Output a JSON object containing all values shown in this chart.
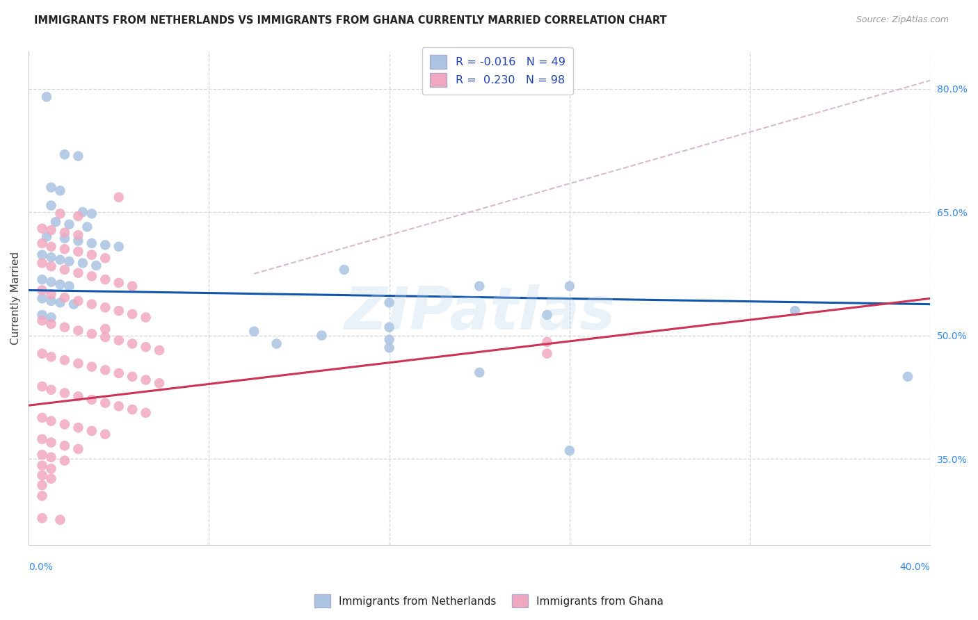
{
  "title": "IMMIGRANTS FROM NETHERLANDS VS IMMIGRANTS FROM GHANA CURRENTLY MARRIED CORRELATION CHART",
  "source": "Source: ZipAtlas.com",
  "ylabel": "Currently Married",
  "ylabel_right_labels": [
    "80.0%",
    "65.0%",
    "50.0%",
    "35.0%"
  ],
  "ylabel_right_values": [
    0.8,
    0.65,
    0.5,
    0.35
  ],
  "x_min": 0.0,
  "x_max": 0.4,
  "y_min": 0.245,
  "y_max": 0.845,
  "legend_r_blue": "-0.016",
  "legend_n_blue": "49",
  "legend_r_pink": "0.230",
  "legend_n_pink": "98",
  "blue_color": "#aac4e2",
  "pink_color": "#f0a8c0",
  "blue_line_color": "#1155aa",
  "pink_line_color": "#cc3355",
  "dash_line_color": "#d0a8c0",
  "watermark": "ZIPatlas",
  "blue_scatter": [
    [
      0.008,
      0.79
    ],
    [
      0.016,
      0.72
    ],
    [
      0.022,
      0.718
    ],
    [
      0.01,
      0.68
    ],
    [
      0.014,
      0.676
    ],
    [
      0.01,
      0.658
    ],
    [
      0.024,
      0.65
    ],
    [
      0.028,
      0.648
    ],
    [
      0.012,
      0.638
    ],
    [
      0.018,
      0.635
    ],
    [
      0.026,
      0.632
    ],
    [
      0.008,
      0.62
    ],
    [
      0.016,
      0.618
    ],
    [
      0.022,
      0.615
    ],
    [
      0.028,
      0.612
    ],
    [
      0.034,
      0.61
    ],
    [
      0.04,
      0.608
    ],
    [
      0.006,
      0.598
    ],
    [
      0.01,
      0.595
    ],
    [
      0.014,
      0.592
    ],
    [
      0.018,
      0.59
    ],
    [
      0.024,
      0.588
    ],
    [
      0.03,
      0.585
    ],
    [
      0.006,
      0.568
    ],
    [
      0.01,
      0.565
    ],
    [
      0.014,
      0.562
    ],
    [
      0.018,
      0.56
    ],
    [
      0.006,
      0.545
    ],
    [
      0.01,
      0.542
    ],
    [
      0.014,
      0.54
    ],
    [
      0.02,
      0.538
    ],
    [
      0.006,
      0.525
    ],
    [
      0.01,
      0.522
    ],
    [
      0.14,
      0.58
    ],
    [
      0.24,
      0.56
    ],
    [
      0.2,
      0.56
    ],
    [
      0.16,
      0.54
    ],
    [
      0.23,
      0.525
    ],
    [
      0.16,
      0.51
    ],
    [
      0.1,
      0.505
    ],
    [
      0.13,
      0.5
    ],
    [
      0.16,
      0.495
    ],
    [
      0.11,
      0.49
    ],
    [
      0.16,
      0.485
    ],
    [
      0.34,
      0.53
    ],
    [
      0.2,
      0.455
    ],
    [
      0.39,
      0.45
    ],
    [
      0.24,
      0.36
    ]
  ],
  "pink_scatter": [
    [
      0.04,
      0.668
    ],
    [
      0.014,
      0.648
    ],
    [
      0.022,
      0.645
    ],
    [
      0.006,
      0.63
    ],
    [
      0.01,
      0.628
    ],
    [
      0.016,
      0.625
    ],
    [
      0.022,
      0.622
    ],
    [
      0.006,
      0.612
    ],
    [
      0.01,
      0.608
    ],
    [
      0.016,
      0.605
    ],
    [
      0.022,
      0.602
    ],
    [
      0.028,
      0.598
    ],
    [
      0.034,
      0.594
    ],
    [
      0.006,
      0.588
    ],
    [
      0.01,
      0.584
    ],
    [
      0.016,
      0.58
    ],
    [
      0.022,
      0.576
    ],
    [
      0.028,
      0.572
    ],
    [
      0.034,
      0.568
    ],
    [
      0.04,
      0.564
    ],
    [
      0.046,
      0.56
    ],
    [
      0.006,
      0.555
    ],
    [
      0.01,
      0.55
    ],
    [
      0.016,
      0.546
    ],
    [
      0.022,
      0.542
    ],
    [
      0.028,
      0.538
    ],
    [
      0.034,
      0.534
    ],
    [
      0.04,
      0.53
    ],
    [
      0.046,
      0.526
    ],
    [
      0.052,
      0.522
    ],
    [
      0.006,
      0.518
    ],
    [
      0.01,
      0.514
    ],
    [
      0.016,
      0.51
    ],
    [
      0.022,
      0.506
    ],
    [
      0.028,
      0.502
    ],
    [
      0.034,
      0.498
    ],
    [
      0.04,
      0.494
    ],
    [
      0.046,
      0.49
    ],
    [
      0.052,
      0.486
    ],
    [
      0.058,
      0.482
    ],
    [
      0.006,
      0.478
    ],
    [
      0.01,
      0.474
    ],
    [
      0.016,
      0.47
    ],
    [
      0.022,
      0.466
    ],
    [
      0.028,
      0.462
    ],
    [
      0.034,
      0.458
    ],
    [
      0.04,
      0.454
    ],
    [
      0.046,
      0.45
    ],
    [
      0.052,
      0.446
    ],
    [
      0.058,
      0.442
    ],
    [
      0.006,
      0.438
    ],
    [
      0.01,
      0.434
    ],
    [
      0.016,
      0.43
    ],
    [
      0.022,
      0.426
    ],
    [
      0.028,
      0.422
    ],
    [
      0.034,
      0.418
    ],
    [
      0.04,
      0.414
    ],
    [
      0.046,
      0.41
    ],
    [
      0.052,
      0.406
    ],
    [
      0.006,
      0.4
    ],
    [
      0.01,
      0.396
    ],
    [
      0.016,
      0.392
    ],
    [
      0.022,
      0.388
    ],
    [
      0.028,
      0.384
    ],
    [
      0.034,
      0.38
    ],
    [
      0.006,
      0.374
    ],
    [
      0.01,
      0.37
    ],
    [
      0.016,
      0.366
    ],
    [
      0.022,
      0.362
    ],
    [
      0.006,
      0.355
    ],
    [
      0.01,
      0.352
    ],
    [
      0.016,
      0.348
    ],
    [
      0.006,
      0.342
    ],
    [
      0.01,
      0.338
    ],
    [
      0.006,
      0.33
    ],
    [
      0.01,
      0.326
    ],
    [
      0.006,
      0.318
    ],
    [
      0.006,
      0.305
    ],
    [
      0.006,
      0.278
    ],
    [
      0.014,
      0.276
    ],
    [
      0.034,
      0.508
    ],
    [
      0.23,
      0.492
    ],
    [
      0.23,
      0.478
    ]
  ],
  "blue_line": {
    "x0": 0.0,
    "y0": 0.555,
    "x1": 0.4,
    "y1": 0.538
  },
  "pink_line": {
    "x0": 0.0,
    "y0": 0.415,
    "x1": 0.4,
    "y1": 0.545
  },
  "dash_line": {
    "x0": 0.1,
    "y0": 0.575,
    "x1": 0.4,
    "y1": 0.81
  },
  "grid_color": "#d4d4dc",
  "background_color": "#ffffff",
  "grid_yticks": [
    0.35,
    0.5,
    0.65,
    0.8
  ],
  "grid_xticks": [
    0.0,
    0.08,
    0.16,
    0.24,
    0.32,
    0.4
  ]
}
